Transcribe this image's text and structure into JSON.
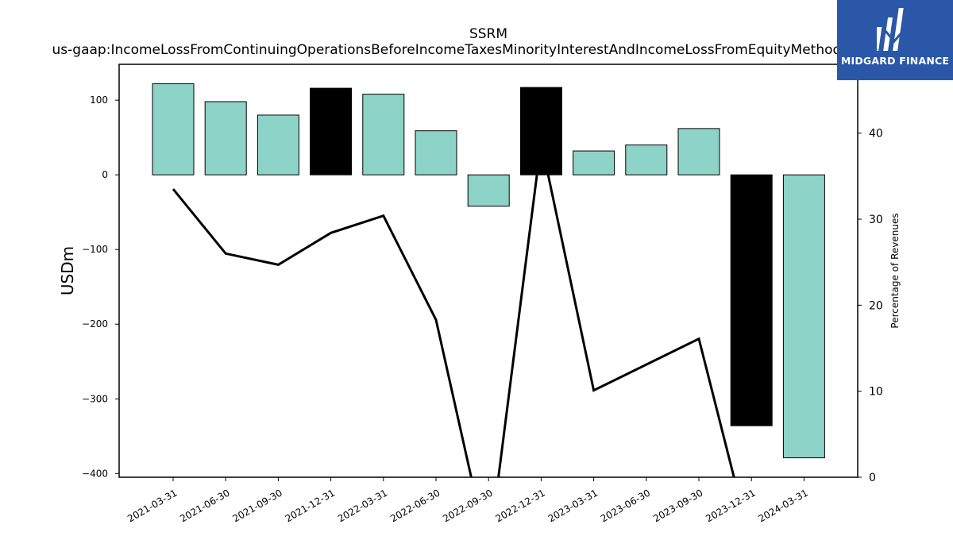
{
  "chart_data": {
    "type": "bar",
    "title": "SSRM",
    "subtitle": "us-gaap:IncomeLossFromContinuingOperationsBeforeIncomeTaxesMinorityInterestAndIncomeLossFromEquityMethodInvestments",
    "ylabel": "USDm",
    "y2label": "Percentage of Revenues",
    "categories": [
      "2021-03-31",
      "2021-06-30",
      "2021-09-30",
      "2021-12-31",
      "2022-03-31",
      "2022-06-30",
      "2022-09-30",
      "2022-12-31",
      "2023-03-31",
      "2023-06-30",
      "2023-09-30",
      "2023-12-31",
      "2024-03-31"
    ],
    "series": [
      {
        "type": "bar",
        "values": [
          122,
          98,
          80,
          116,
          108,
          59,
          -42,
          117,
          32,
          40,
          62,
          -336,
          -379
        ],
        "colors": [
          "#8dd3c7",
          "#8dd3c7",
          "#8dd3c7",
          "#000000",
          "#8dd3c7",
          "#8dd3c7",
          "#8dd3c7",
          "#000000",
          "#8dd3c7",
          "#8dd3c7",
          "#8dd3c7",
          "#000000",
          "#8dd3c7"
        ]
      },
      {
        "type": "line",
        "axis": "right",
        "color": "#000000",
        "values": [
          33.5,
          26.0,
          24.7,
          28.4,
          30.4,
          18.3,
          -9.0,
          39.0,
          10.1,
          13.1,
          16.1,
          -8.0,
          null
        ]
      }
    ],
    "ylim": [
      -405,
      148
    ],
    "yticks": [
      -400,
      -300,
      -200,
      -100,
      0,
      100
    ],
    "y2lim": [
      0,
      48
    ],
    "y2ticks": [
      0,
      10,
      20,
      30,
      40
    ],
    "grid": false,
    "legend": "none"
  },
  "logo": {
    "text": "MIDGARD FINANCE"
  }
}
